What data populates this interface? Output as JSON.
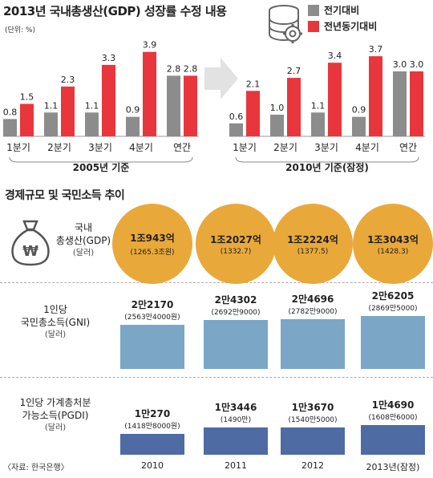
{
  "title": "2013년 국내총생산(GDP) 성장률 수정 내용",
  "unit": "(단위: %)",
  "icon": "database-gear-icon",
  "colors": {
    "prev_quarter": "#8c8c8c",
    "prev_year": "#e8363c",
    "circle": "#e9a83a",
    "gni_bar": "#7ba6c6",
    "pgdi_bar": "#4e6ba3"
  },
  "chart_data": [
    {
      "type": "bar",
      "title": "2005년 기준",
      "categories": [
        "1분기",
        "2분기",
        "3분기",
        "4분기",
        "연간"
      ],
      "series": [
        {
          "name": "전기대비",
          "values": [
            0.8,
            1.1,
            1.1,
            0.9,
            2.8
          ]
        },
        {
          "name": "전년동기대비",
          "values": [
            1.5,
            2.3,
            3.3,
            3.9,
            2.8
          ]
        }
      ],
      "value_labels": {
        "전기대비": [
          "0.8",
          "1.1",
          "1.1",
          "0.9",
          "2.8"
        ],
        "전년동기대비": [
          "1.5",
          "2.3",
          "3.3",
          "3.9",
          "2.8"
        ]
      },
      "ylim": [
        0,
        4
      ]
    },
    {
      "type": "bar",
      "title": "2010년 기준(잠정)",
      "categories": [
        "1분기",
        "2분기",
        "3분기",
        "4분기",
        "연간"
      ],
      "series": [
        {
          "name": "전기대비",
          "values": [
            0.6,
            1.0,
            1.1,
            0.9,
            3.0
          ]
        },
        {
          "name": "전년동기대비",
          "values": [
            2.1,
            2.7,
            3.4,
            3.7,
            3.0
          ]
        }
      ],
      "value_labels": {
        "전기대비": [
          "0.6",
          "1.0",
          "1.1",
          "0.9",
          "3.0"
        ],
        "전년동기대비": [
          "2.1",
          "2.7",
          "3.4",
          "3.7",
          "3.0"
        ]
      },
      "ylim": [
        0,
        4
      ]
    }
  ],
  "legend": {
    "prev_quarter": "전기대비",
    "prev_year": "전년동기대비"
  },
  "section2": {
    "title": "경제규모 및 국민소득 추이",
    "years": [
      "2010",
      "2011",
      "2012",
      "2013년(잠정)"
    ],
    "gdp": {
      "label_line1": "국내",
      "label_line2": "총생산(GDP)",
      "unit": "(달러)",
      "items": [
        {
          "main": "1조943억",
          "sub": "(1265.3조원)"
        },
        {
          "main": "1조2027억",
          "sub": "(1332.7)"
        },
        {
          "main": "1조2224억",
          "sub": "(1377.5)"
        },
        {
          "main": "1조3043억",
          "sub": "(1428.3)"
        }
      ]
    },
    "gni": {
      "label_line1": "1인당",
      "label_line2": "국민총소득(GNI)",
      "unit": "(달러)",
      "values": [
        22170,
        24302,
        24696,
        26205
      ],
      "items": [
        {
          "main": "2만2170",
          "sub": "(2563만4000원)"
        },
        {
          "main": "2만4302",
          "sub": "(2692만9000)"
        },
        {
          "main": "2만4696",
          "sub": "(2782만9000)"
        },
        {
          "main": "2만6205",
          "sub": "(2869만5000)"
        }
      ]
    },
    "pgdi": {
      "label_line1": "1인당 가계총처분",
      "label_line2": "가능소득(PGDI)",
      "unit": "(달러)",
      "values": [
        10270,
        13446,
        13670,
        14690
      ],
      "items": [
        {
          "main": "1만270",
          "sub": "(1418만8000원)"
        },
        {
          "main": "1만3446",
          "sub": "(1490만)"
        },
        {
          "main": "1만3670",
          "sub": "(1540만5000)"
        },
        {
          "main": "1만4690",
          "sub": "(1608만6000)"
        }
      ]
    }
  },
  "source": "〈자료: 한국은행〉"
}
